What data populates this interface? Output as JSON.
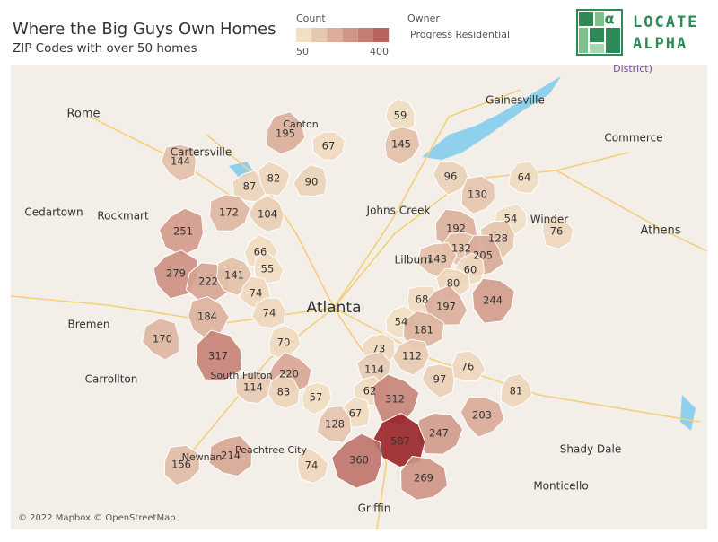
{
  "header": {
    "title": "Where the Big Guys Own Homes",
    "subtitle": "ZIP Codes with over 50 homes"
  },
  "legend": {
    "title": "Count",
    "min": 50,
    "max": 400
  },
  "owner": {
    "label": "Owner",
    "value": "Progress Residential"
  },
  "logo": {
    "line1": "LOCATE",
    "line2": "ALPHA"
  },
  "map": {
    "zip_counts": [
      144,
      195,
      67,
      59,
      145,
      87,
      82,
      90,
      96,
      64,
      172,
      104,
      130,
      54,
      76,
      251,
      192,
      128,
      66,
      132,
      205,
      143,
      55,
      279,
      222,
      141,
      60,
      80,
      74,
      68,
      197,
      244,
      74,
      184,
      54,
      181,
      170,
      70,
      73,
      317,
      112,
      76,
      114,
      220,
      97,
      81,
      114,
      83,
      57,
      62,
      312,
      67,
      203,
      128,
      247,
      587,
      156,
      214,
      74,
      360,
      269
    ],
    "cities": [
      "Rome",
      "Gainesville",
      "Commerce",
      "Cartersville",
      "Canton",
      "Cedartown",
      "Rockmart",
      "Johns Creek",
      "Winder",
      "Athens",
      "Lilburn",
      "Atlanta",
      "Bremen",
      "Carrollton",
      "South Fulton",
      "Peachtree City",
      "Newnan",
      "Shady Dale",
      "Monticello",
      "Griffin",
      "District)"
    ],
    "attribution": "© 2022 Mapbox © OpenStreetMap"
  }
}
